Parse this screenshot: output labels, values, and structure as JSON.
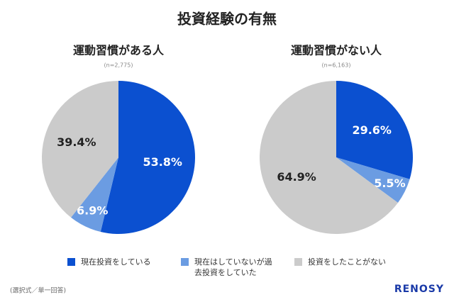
{
  "title": "投資経験の有無",
  "legend": {
    "labels": [
      "現在投資をしている",
      "現在はしていないが過去投資をしていた",
      "投資をしたことがない"
    ],
    "colors": [
      "#0b50d0",
      "#6b9ce2",
      "#cbcbcb"
    ]
  },
  "chart_data": [
    {
      "type": "pie",
      "title": "運動習慣がある人",
      "subtitle": "(n=2,775)",
      "values": [
        53.8,
        6.9,
        39.4
      ],
      "value_labels": [
        "53.8%",
        "6.9%",
        "39.4%"
      ]
    },
    {
      "type": "pie",
      "title": "運動習慣がない人",
      "subtitle": "(n=6,163)",
      "values": [
        29.6,
        5.5,
        64.9
      ],
      "value_labels": [
        "29.6%",
        "5.5%",
        "64.9%"
      ]
    }
  ],
  "note": "(選択式／単一回答)",
  "brand": "RENOSY"
}
